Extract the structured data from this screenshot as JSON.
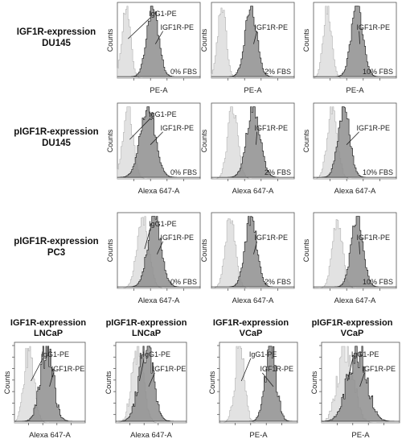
{
  "rows": [
    {
      "label_line1": "IGF1R-expression",
      "label_line2": "DU145"
    },
    {
      "label_line1": "pIGF1R-expression",
      "label_line2": "DU145"
    },
    {
      "label_line1": "pIGF1R-expression",
      "label_line2": "PC3"
    }
  ],
  "bottom_titles": [
    {
      "line1": "IGF1R-expression",
      "line2": "LNCaP"
    },
    {
      "line1": "pIGF1R-expression",
      "line2": "LNCaP"
    },
    {
      "line1": "IGF1R-expression",
      "line2": "VCaP"
    },
    {
      "line1": "pIGF1R-expression",
      "line2": "VCaP"
    }
  ],
  "text": {
    "ylabel": "Counts",
    "xlabel_pe": "PE-A",
    "xlabel_alexa": "Alexa 647-A",
    "isotype": "IgG1-PE",
    "target": "IGF1R-PE",
    "fbs0": "0% FBS",
    "fbs2": "2% FBS",
    "fbs10": "10% FBS"
  },
  "colors": {
    "isotype_fill": "#e2e2e2",
    "isotype_stroke": "#b4b4b4",
    "target_fill": "#8e8e8e",
    "target_stroke": "#2b2b2b"
  },
  "chart_data": [
    {
      "type": "area",
      "panel": "IGF1R DU145 0% FBS",
      "xlabel": "PE-A",
      "ylabel": "Counts",
      "annotations": [
        "IgG1-PE",
        "IGF1R-PE",
        "0% FBS"
      ],
      "series": [
        {
          "name": "IgG1-PE",
          "peak_position": 0.1,
          "width": 0.05
        },
        {
          "name": "IGF1R-PE",
          "peak_position": 0.42,
          "width": 0.07
        }
      ]
    },
    {
      "type": "area",
      "panel": "IGF1R DU145 2% FBS",
      "xlabel": "PE-A",
      "ylabel": "Counts",
      "annotations": [
        "IGF1R-PE",
        "2% FBS"
      ],
      "series": [
        {
          "name": "isotype",
          "peak_position": 0.12,
          "width": 0.05
        },
        {
          "name": "IGF1R-PE",
          "peak_position": 0.47,
          "width": 0.07
        }
      ]
    },
    {
      "type": "area",
      "panel": "IGF1R DU145 10% FBS",
      "xlabel": "PE-A",
      "ylabel": "Counts",
      "annotations": [
        "IGF1R-PE",
        "10% FBS"
      ],
      "series": [
        {
          "name": "isotype",
          "peak_position": 0.16,
          "width": 0.05
        },
        {
          "name": "IGF1R-PE",
          "peak_position": 0.52,
          "width": 0.07
        }
      ]
    },
    {
      "type": "area",
      "panel": "pIGF1R DU145 0% FBS",
      "xlabel": "Alexa 647-A",
      "ylabel": "Counts",
      "annotations": [
        "IgG1-PE",
        "IGF1R-PE",
        "0% FBS"
      ],
      "series": [
        {
          "name": "IgG1-PE",
          "peak_position": 0.12,
          "width": 0.06
        },
        {
          "name": "IGF1R-PE",
          "peak_position": 0.36,
          "width": 0.09
        }
      ]
    },
    {
      "type": "area",
      "panel": "pIGF1R DU145 2% FBS",
      "xlabel": "Alexa 647-A",
      "ylabel": "Counts",
      "annotations": [
        "IGF1R-PE",
        "2% FBS"
      ],
      "series": [
        {
          "name": "isotype",
          "peak_position": 0.25,
          "width": 0.06
        },
        {
          "name": "IGF1R-PE",
          "peak_position": 0.5,
          "width": 0.08
        }
      ]
    },
    {
      "type": "area",
      "panel": "pIGF1R DU145 10% FBS",
      "xlabel": "Alexa 647-A",
      "ylabel": "Counts",
      "annotations": [
        "IGF1R-PE",
        "10% FBS"
      ],
      "series": [
        {
          "name": "isotype",
          "peak_position": 0.22,
          "width": 0.06
        },
        {
          "name": "IGF1R-PE",
          "peak_position": 0.36,
          "width": 0.07
        }
      ]
    },
    {
      "type": "area",
      "panel": "pIGF1R PC3 0% FBS",
      "xlabel": "Alexa 647-A",
      "ylabel": "Counts",
      "annotations": [
        "IgG1-PE",
        "IGF1R-PE",
        "0% FBS"
      ],
      "series": [
        {
          "name": "IgG1-PE",
          "peak_position": 0.3,
          "width": 0.07
        },
        {
          "name": "IGF1R-PE",
          "peak_position": 0.44,
          "width": 0.08
        }
      ]
    },
    {
      "type": "area",
      "panel": "pIGF1R PC3 2% FBS",
      "xlabel": "Alexa 647-A",
      "ylabel": "Counts",
      "annotations": [
        "IGF1R-PE",
        "2% FBS"
      ],
      "series": [
        {
          "name": "isotype",
          "peak_position": 0.22,
          "width": 0.06
        },
        {
          "name": "IGF1R-PE",
          "peak_position": 0.47,
          "width": 0.07
        }
      ]
    },
    {
      "type": "area",
      "panel": "pIGF1R PC3 10% FBS",
      "xlabel": "Alexa 647-A",
      "ylabel": "Counts",
      "annotations": [
        "IGF1R-PE",
        "10% FBS"
      ],
      "series": [
        {
          "name": "isotype",
          "peak_position": 0.28,
          "width": 0.06
        },
        {
          "name": "IGF1R-PE",
          "peak_position": 0.52,
          "width": 0.07
        }
      ]
    },
    {
      "type": "area",
      "panel": "IGF1R LNCaP",
      "xlabel": "Alexa 647-A",
      "ylabel": "Counts",
      "annotations": [
        "IgG1-PE",
        "IGF1R-PE"
      ],
      "series": [
        {
          "name": "IgG1-PE",
          "peak_position": 0.2,
          "width": 0.07
        },
        {
          "name": "IGF1R-PE",
          "peak_position": 0.45,
          "width": 0.09
        }
      ]
    },
    {
      "type": "area",
      "panel": "pIGF1R LNCaP",
      "xlabel": "Alexa 647-A",
      "ylabel": "Counts",
      "annotations": [
        "IgG1-PE",
        "IGF1R-PE"
      ],
      "series": [
        {
          "name": "IgG1-PE",
          "peak_position": 0.3,
          "width": 0.08
        },
        {
          "name": "IGF1R-PE",
          "peak_position": 0.42,
          "width": 0.1
        }
      ]
    },
    {
      "type": "area",
      "panel": "IGF1R VCaP",
      "xlabel": "PE-A",
      "ylabel": "Counts",
      "annotations": [
        "IgG1-PE",
        "IGF1R-PE"
      ],
      "series": [
        {
          "name": "IgG1-PE",
          "peak_position": 0.25,
          "width": 0.06
        },
        {
          "name": "IGF1R-PE",
          "peak_position": 0.65,
          "width": 0.07
        }
      ]
    },
    {
      "type": "area",
      "panel": "pIGF1R VCaP",
      "xlabel": "PE-A",
      "ylabel": "Counts",
      "annotations": [
        "IgG1-PE",
        "IGF1R-PE"
      ],
      "series": [
        {
          "name": "IgG1-PE",
          "peak_position": 0.3,
          "width": 0.1
        },
        {
          "name": "IGF1R-PE",
          "peak_position": 0.45,
          "width": 0.12
        }
      ]
    }
  ]
}
